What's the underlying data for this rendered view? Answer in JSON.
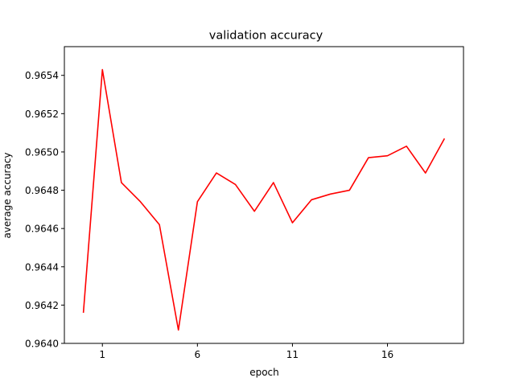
{
  "chart_data": {
    "type": "line",
    "title": "validation accuracy",
    "xlabel": "epoch",
    "ylabel": "average accuracy",
    "xlim": [
      -1.0,
      20.0
    ],
    "ylim": [
      0.964,
      0.96555
    ],
    "xticks": [
      1,
      6,
      11,
      16
    ],
    "yticks": [
      0.964,
      0.9642,
      0.9644,
      0.9646,
      0.9648,
      0.965,
      0.9652,
      0.9654
    ],
    "ytick_labels": [
      "0.9640",
      "0.9642",
      "0.9644",
      "0.9646",
      "0.9648",
      "0.9650",
      "0.9652",
      "0.9654"
    ],
    "grid": false,
    "series": [
      {
        "color": "#ff0000",
        "x": [
          0,
          1,
          2,
          3,
          4,
          5,
          6,
          7,
          8,
          9,
          10,
          11,
          12,
          13,
          14,
          15,
          16,
          17,
          18,
          19
        ],
        "y": [
          0.96416,
          0.96543,
          0.96484,
          0.96474,
          0.96462,
          0.96407,
          0.96474,
          0.96489,
          0.96483,
          0.96469,
          0.96484,
          0.96463,
          0.96475,
          0.96478,
          0.9648,
          0.96497,
          0.96498,
          0.96503,
          0.96489,
          0.96507
        ]
      }
    ]
  }
}
